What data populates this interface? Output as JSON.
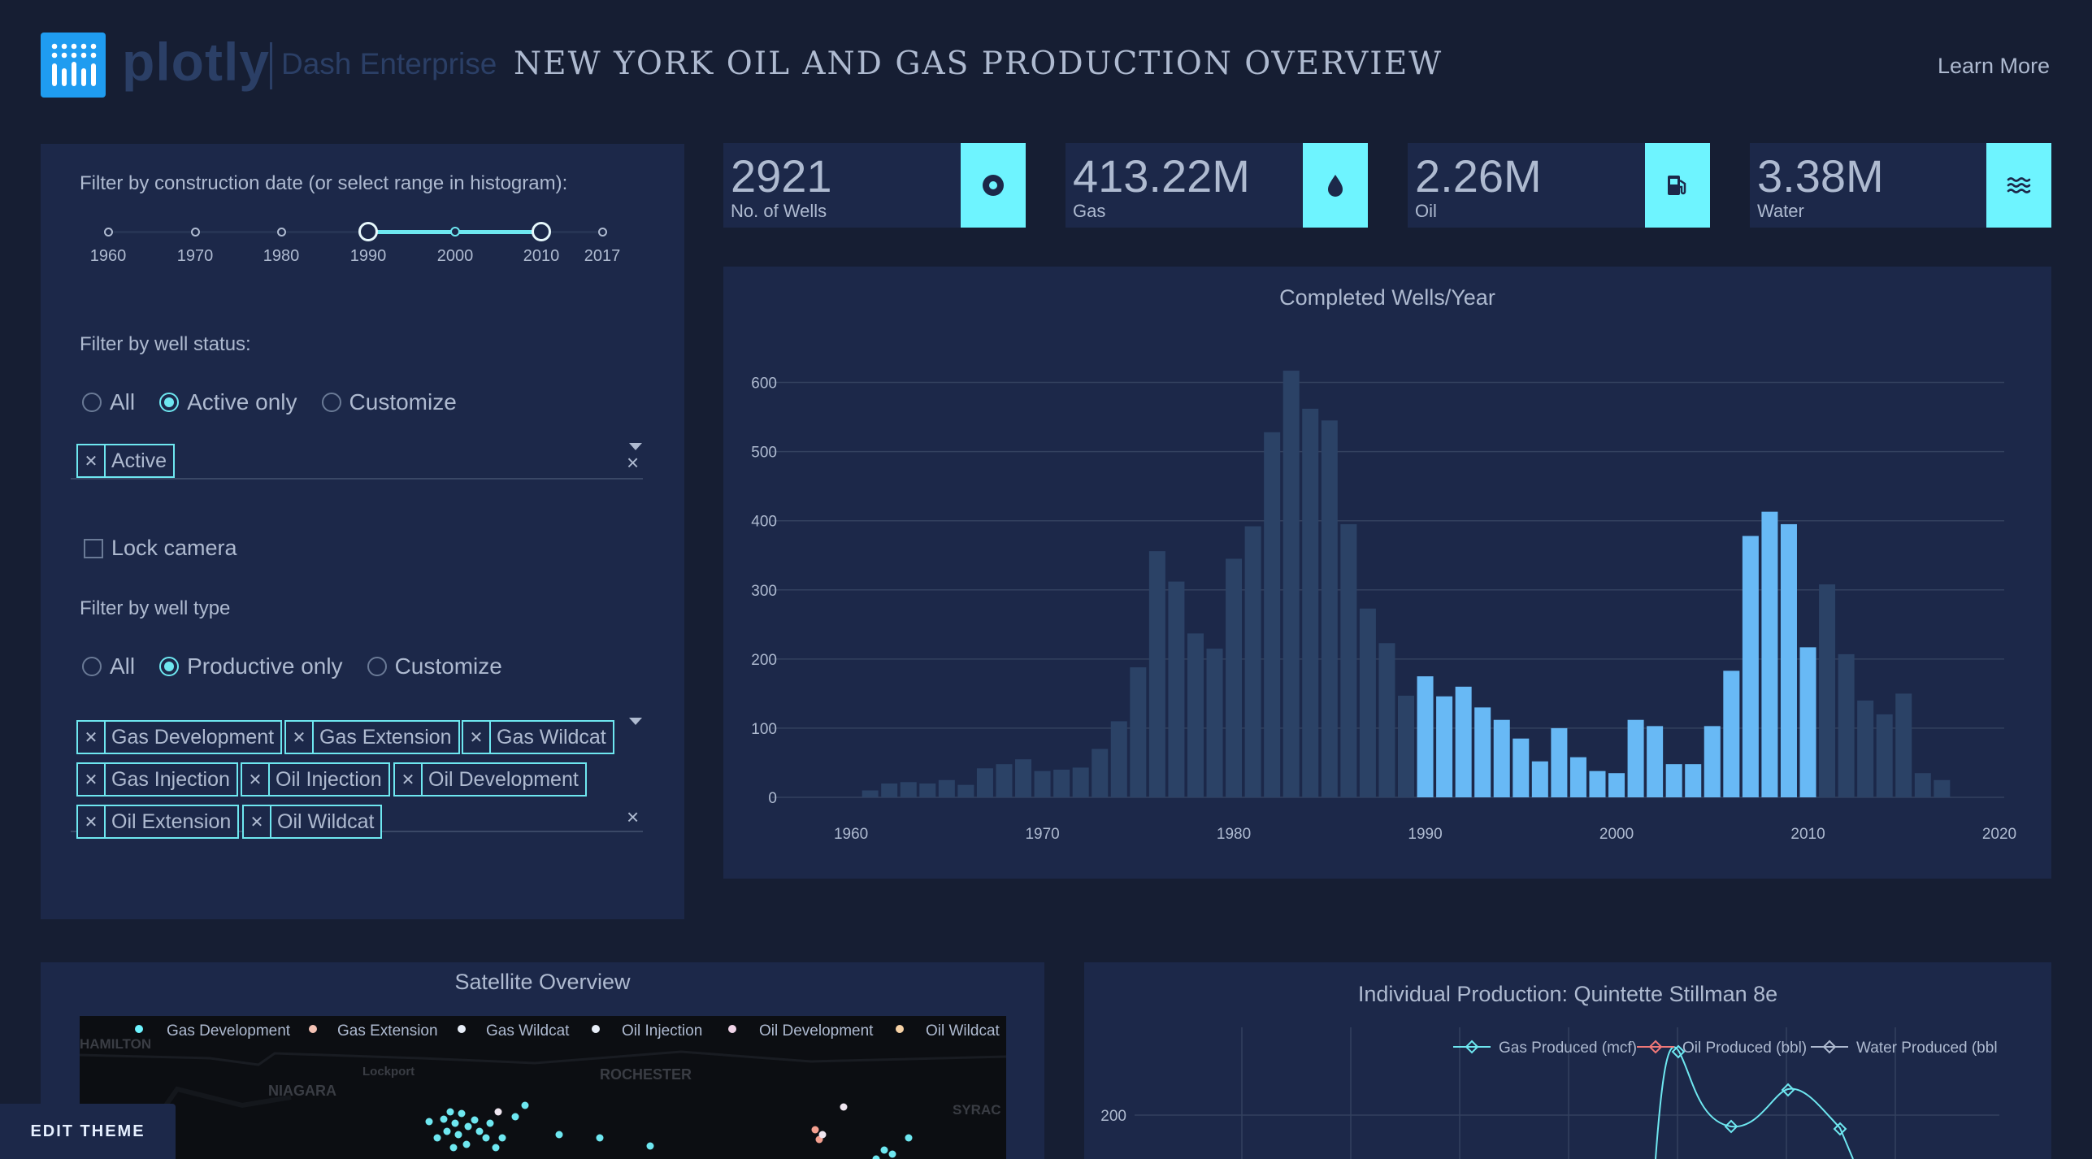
{
  "header": {
    "logo_word": "plotly",
    "logo_sub": "Dash Enterprise",
    "title": "NEW YORK OIL AND GAS PRODUCTION OVERVIEW",
    "learn_more": "Learn More"
  },
  "filters": {
    "date_label": "Filter by construction date (or select range in histogram):",
    "slider": {
      "ticks": [
        "1960",
        "1970",
        "1980",
        "1990",
        "2000",
        "2010",
        "2017"
      ],
      "selected_range": [
        1990,
        2010
      ]
    },
    "status_label": "Filter by well status:",
    "status_options": [
      "All",
      "Active only",
      "Customize"
    ],
    "status_selected": "Active only",
    "status_tags": [
      "Active"
    ],
    "lock_camera": "Lock camera",
    "type_label": "Filter by well type",
    "type_options": [
      "All",
      "Productive only",
      "Customize"
    ],
    "type_selected": "Productive only",
    "type_tags": [
      "Gas Development",
      "Gas Extension",
      "Gas Wildcat",
      "Gas Injection",
      "Oil Injection",
      "Oil Development",
      "Oil Extension",
      "Oil Wildcat"
    ]
  },
  "stats": [
    {
      "value": "2921",
      "label": "No. of Wells",
      "icon": "record-icon"
    },
    {
      "value": "413.22M",
      "label": "Gas",
      "icon": "drop-icon"
    },
    {
      "value": "2.26M",
      "label": "Oil",
      "icon": "gas-pump-icon"
    },
    {
      "value": "3.38M",
      "label": "Water",
      "icon": "waves-icon"
    }
  ],
  "colors": {
    "background": "#161e33",
    "panel": "#1c2849",
    "accent": "#6ef4ff",
    "bar_selected": "#68b9f5",
    "bar_unselected": "#2b4266",
    "gas": "#6ee7f0",
    "oil": "#f07878",
    "water": "#aebad0"
  },
  "chart_data": [
    {
      "type": "bar",
      "title": "Completed Wells/Year",
      "x": [
        1961,
        1962,
        1963,
        1964,
        1965,
        1966,
        1967,
        1968,
        1969,
        1970,
        1971,
        1972,
        1973,
        1974,
        1975,
        1976,
        1977,
        1978,
        1979,
        1980,
        1981,
        1982,
        1983,
        1984,
        1985,
        1986,
        1987,
        1988,
        1989,
        1990,
        1991,
        1992,
        1993,
        1994,
        1995,
        1996,
        1997,
        1998,
        1999,
        2000,
        2001,
        2002,
        2003,
        2004,
        2005,
        2006,
        2007,
        2008,
        2009,
        2010,
        2011,
        2012,
        2013,
        2014,
        2015,
        2016,
        2017
      ],
      "values": [
        10,
        20,
        22,
        20,
        25,
        18,
        42,
        48,
        55,
        38,
        40,
        43,
        70,
        110,
        188,
        356,
        312,
        237,
        215,
        345,
        392,
        528,
        617,
        562,
        545,
        395,
        273,
        223,
        147,
        175,
        146,
        160,
        130,
        112,
        85,
        52,
        100,
        58,
        38,
        35,
        112,
        103,
        48,
        48,
        103,
        183,
        378,
        413,
        395,
        217,
        308,
        207,
        140,
        120,
        150,
        35,
        25
      ],
      "selected_range": [
        1990,
        2010
      ],
      "xlim": [
        1958,
        2020
      ],
      "ylim": [
        0,
        650
      ],
      "xticks": [
        1960,
        1970,
        1980,
        1990,
        2000,
        2010,
        2020
      ],
      "yticks": [
        0,
        100,
        200,
        300,
        400,
        500,
        600
      ],
      "grid": true
    },
    {
      "type": "line",
      "title": "Individual Production: Quintette Stillman 8e",
      "series": [
        {
          "name": "Gas Produced (mcf)"
        },
        {
          "name": "Oil Produced (bbl)"
        },
        {
          "name": "Water Produced (bbl"
        }
      ],
      "yticks": [
        200
      ],
      "grid": true,
      "legend": "top"
    }
  ],
  "map": {
    "title": "Satellite Overview",
    "legend": [
      "Gas Development",
      "Gas Extension",
      "Gas Wildcat",
      "Oil Injection",
      "Oil Development",
      "Oil Wildcat"
    ],
    "places": [
      "HAMILTON",
      "Lockport",
      "ROCHESTER",
      "NIAGARA",
      "SYRAC"
    ]
  },
  "edit_theme": "EDIT THEME"
}
